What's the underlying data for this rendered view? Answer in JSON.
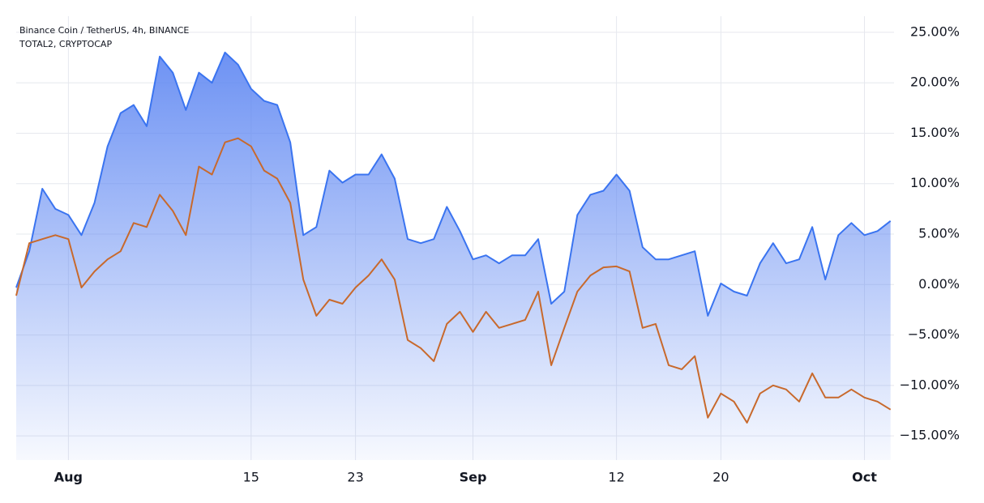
{
  "chart_data": {
    "type": "line",
    "categories": [
      null,
      null,
      null,
      null,
      "Aug",
      null,
      null,
      null,
      null,
      null,
      null,
      null,
      null,
      null,
      null,
      null,
      null,
      null,
      "15",
      null,
      null,
      null,
      null,
      null,
      null,
      null,
      "23",
      null,
      null,
      null,
      null,
      null,
      null,
      null,
      null,
      "Sep",
      null,
      null,
      null,
      null,
      null,
      null,
      null,
      null,
      null,
      null,
      "12",
      null,
      null,
      null,
      null,
      null,
      null,
      null,
      "20",
      null,
      null,
      null,
      null,
      null,
      null,
      null,
      null,
      null,
      null,
      "Oct",
      null,
      null
    ],
    "series": [
      {
        "name": "Binance Coin / TetherUS, 4h, BINANCE",
        "color": "#3a74f0",
        "area": true,
        "values": [
          -0.3,
          3.3,
          9.5,
          7.5,
          6.9,
          4.9,
          8.1,
          13.7,
          17,
          17.8,
          15.7,
          22.6,
          21,
          17.3,
          21,
          20,
          23,
          21.8,
          19.4,
          18.2,
          17.8,
          14.1,
          4.9,
          5.7,
          11.3,
          10.1,
          10.9,
          10.9,
          12.9,
          10.5,
          4.5,
          4.1,
          4.5,
          7.7,
          5.3,
          2.5,
          2.9,
          2.1,
          2.9,
          2.9,
          4.5,
          -1.9,
          -0.7,
          6.9,
          8.9,
          9.3,
          10.9,
          9.3,
          3.7,
          2.5,
          2.5,
          2.9,
          3.3,
          -3.1,
          0.1,
          -0.7,
          -1.1,
          2.1,
          4.1,
          2.1,
          2.5,
          5.7,
          0.5,
          4.9,
          6.1,
          4.9,
          5.3,
          6.3
        ]
      },
      {
        "name": "TOTAL2, CRYPTOCAP",
        "color": "#c8692c",
        "values": [
          -1.1,
          4.1,
          4.5,
          4.9,
          4.5,
          -0.3,
          1.3,
          2.5,
          3.3,
          6.1,
          5.7,
          8.9,
          7.3,
          4.9,
          11.7,
          10.9,
          14.1,
          14.5,
          13.7,
          11.3,
          10.5,
          8.1,
          0.5,
          -3.1,
          -1.5,
          -1.9,
          -0.3,
          0.9,
          2.5,
          0.5,
          -5.5,
          -6.3,
          -7.6,
          -3.9,
          -2.7,
          -4.7,
          -2.7,
          -4.3,
          -3.9,
          -3.5,
          -0.7,
          -8.0,
          -4.3,
          -0.7,
          0.9,
          1.7,
          1.8,
          1.3,
          -4.3,
          -3.9,
          -8.0,
          -8.4,
          -7.1,
          -13.2,
          -10.8,
          -11.6,
          -13.7,
          -10.8,
          -10.0,
          -10.4,
          -11.6,
          -8.8,
          -11.2,
          -11.2,
          -10.4,
          -11.2,
          -11.6,
          -12.4
        ]
      }
    ],
    "ylim": [
      -17.4,
      26.6
    ],
    "yticks": [
      {
        "value": 25,
        "label": "25.00%"
      },
      {
        "value": 20,
        "label": "20.00%"
      },
      {
        "value": 15,
        "label": "15.00%"
      },
      {
        "value": 10,
        "label": "10.00%"
      },
      {
        "value": 5,
        "label": "5.00%"
      },
      {
        "value": 0,
        "label": "0.00%"
      },
      {
        "value": -5,
        "label": "−5.00%"
      },
      {
        "value": -10,
        "label": "−10.00%"
      },
      {
        "value": -15,
        "label": "−15.00%"
      }
    ],
    "grid": true
  }
}
